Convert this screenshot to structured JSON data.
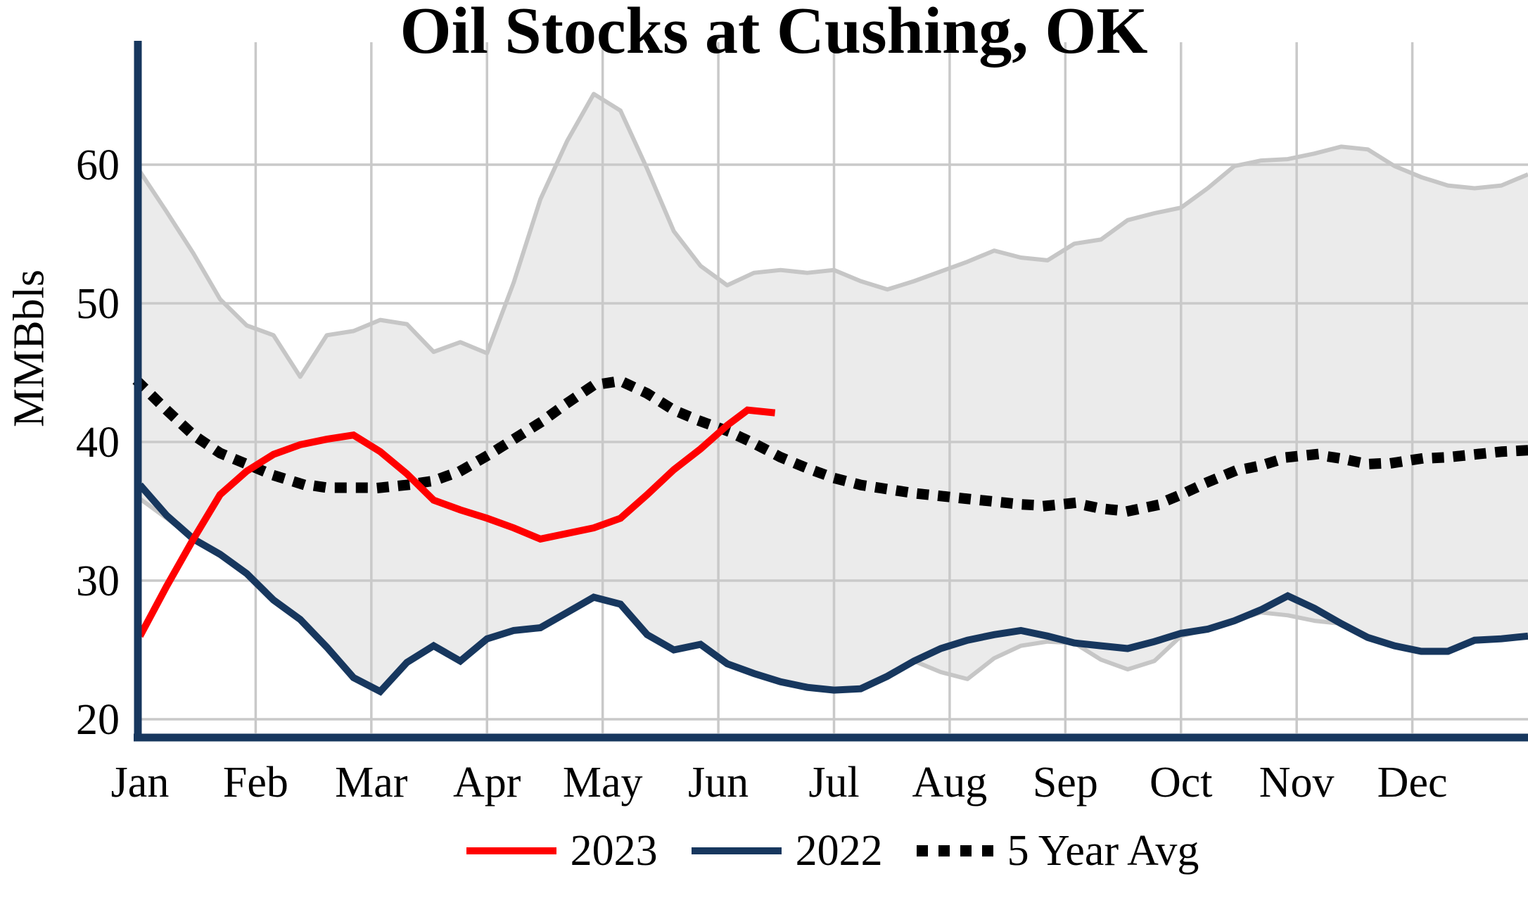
{
  "title": "Oil Stocks at Cushing, OK",
  "y_axis": {
    "label": "MMBbls",
    "ticks": [
      20,
      30,
      40,
      50,
      60
    ]
  },
  "x_axis": {
    "months": [
      "Jan",
      "Feb",
      "Mar",
      "Apr",
      "May",
      "Jun",
      "Jul",
      "Aug",
      "Sep",
      "Oct",
      "Nov",
      "Dec"
    ]
  },
  "legend": {
    "items": [
      {
        "label": "2023",
        "swatch": "red-line"
      },
      {
        "label": "2022",
        "swatch": "navy-line"
      },
      {
        "label": "5 Year Avg",
        "swatch": "black-dotted"
      }
    ]
  },
  "colors": {
    "red": "#FF0000",
    "navy": "#17375E",
    "black": "#000000",
    "band_fill": "#EBEBEB",
    "band_edge": "#C6C6C6",
    "grid": "#C9C9C9",
    "background": "#FFFFFF"
  },
  "chart_data": {
    "type": "line",
    "title": "Oil Stocks at Cushing, OK",
    "xlabel": "",
    "ylabel": "MMBbls",
    "x_unit": "week of year (0-52), Jan-Dec",
    "ylim": [
      17.5,
      67
    ],
    "y_ticks": [
      20,
      30,
      40,
      50,
      60
    ],
    "grid": true,
    "legend_position": "bottom",
    "months": [
      "Jan",
      "Feb",
      "Mar",
      "Apr",
      "May",
      "Jun",
      "Jul",
      "Aug",
      "Sep",
      "Oct",
      "Nov",
      "Dec"
    ],
    "band": {
      "name": "5-year range (shaded)",
      "fill": "#EBEBEB",
      "edge": "#C6C6C6",
      "start_week": 0,
      "step": 1,
      "upper": [
        59.5,
        56.6,
        53.6,
        50.3,
        48.4,
        47.7,
        44.7,
        47.7,
        48.0,
        48.8,
        48.5,
        46.5,
        47.2,
        46.4,
        51.5,
        57.5,
        61.7,
        65.1,
        63.9,
        59.7,
        55.2,
        52.7,
        51.3,
        52.2,
        52.4,
        52.2,
        52.4,
        51.6,
        51.0,
        51.6,
        52.3,
        53.0,
        53.8,
        53.3,
        53.1,
        54.3,
        54.6,
        56.0,
        56.5,
        56.9,
        58.3,
        59.9,
        60.3,
        60.4,
        60.8,
        61.3,
        61.1,
        59.9,
        59.1,
        58.5,
        58.3,
        58.5,
        59.3
      ],
      "lower": [
        35.9,
        34.5,
        33.0,
        31.9,
        30.5,
        28.6,
        27.2,
        25.2,
        23.0,
        22.0,
        24.1,
        25.3,
        24.2,
        25.8,
        26.4,
        26.6,
        27.7,
        28.8,
        28.3,
        26.1,
        25.0,
        25.4,
        24.0,
        23.3,
        22.7,
        22.3,
        22.1,
        22.2,
        23.1,
        24.2,
        23.4,
        22.9,
        24.4,
        25.3,
        25.6,
        25.5,
        24.3,
        23.6,
        24.2,
        26.0,
        26.5,
        27.1,
        27.7,
        27.5,
        27.1,
        26.9,
        25.9,
        25.3,
        24.9,
        24.9,
        25.7,
        25.8,
        26.0
      ]
    },
    "series": [
      {
        "name": "2023",
        "color": "#FF0000",
        "style": "solid",
        "weeks": [
          0,
          1,
          2,
          3,
          4,
          5,
          6,
          7,
          8,
          9,
          10,
          11,
          12,
          13,
          14,
          15,
          16,
          17,
          18,
          19,
          20,
          21,
          22,
          22.76,
          23.79
        ],
        "values": [
          26.0,
          29.6,
          33.0,
          36.2,
          37.9,
          39.1,
          39.8,
          40.2,
          40.5,
          39.3,
          37.7,
          35.8,
          35.1,
          34.5,
          33.8,
          33.0,
          33.4,
          33.8,
          34.5,
          36.2,
          38.0,
          39.5,
          41.2,
          42.3,
          42.1
        ]
      },
      {
        "name": "2022",
        "color": "#17375E",
        "style": "solid",
        "start_week": 0,
        "step": 1,
        "values": [
          36.9,
          34.7,
          33.0,
          31.9,
          30.5,
          28.6,
          27.2,
          25.2,
          23.0,
          22.0,
          24.1,
          25.3,
          24.2,
          25.8,
          26.4,
          26.6,
          27.7,
          28.8,
          28.3,
          26.1,
          25.0,
          25.4,
          24.0,
          23.3,
          22.7,
          22.3,
          22.1,
          22.2,
          23.1,
          24.2,
          25.1,
          25.7,
          26.1,
          26.4,
          26.0,
          25.5,
          25.3,
          25.1,
          25.6,
          26.2,
          26.5,
          27.1,
          27.9,
          28.9,
          28.0,
          26.9,
          25.9,
          25.3,
          24.9,
          24.9,
          25.7,
          25.8,
          26.0
        ]
      },
      {
        "name": "5 Year Avg",
        "color": "#000000",
        "style": "dotted",
        "start_week": 0,
        "step": 1,
        "values": [
          44.2,
          42.3,
          40.5,
          39.2,
          38.4,
          37.6,
          37.0,
          36.7,
          36.7,
          36.7,
          36.9,
          37.2,
          37.9,
          39.0,
          40.2,
          41.4,
          42.8,
          44.1,
          44.4,
          43.5,
          42.3,
          41.5,
          40.8,
          39.9,
          38.9,
          38.1,
          37.4,
          36.9,
          36.6,
          36.3,
          36.1,
          35.9,
          35.7,
          35.5,
          35.4,
          35.6,
          35.2,
          35.0,
          35.4,
          36.2,
          37.1,
          37.9,
          38.3,
          38.9,
          39.1,
          38.8,
          38.4,
          38.5,
          38.8,
          38.9,
          39.1,
          39.3,
          39.4
        ]
      }
    ]
  }
}
